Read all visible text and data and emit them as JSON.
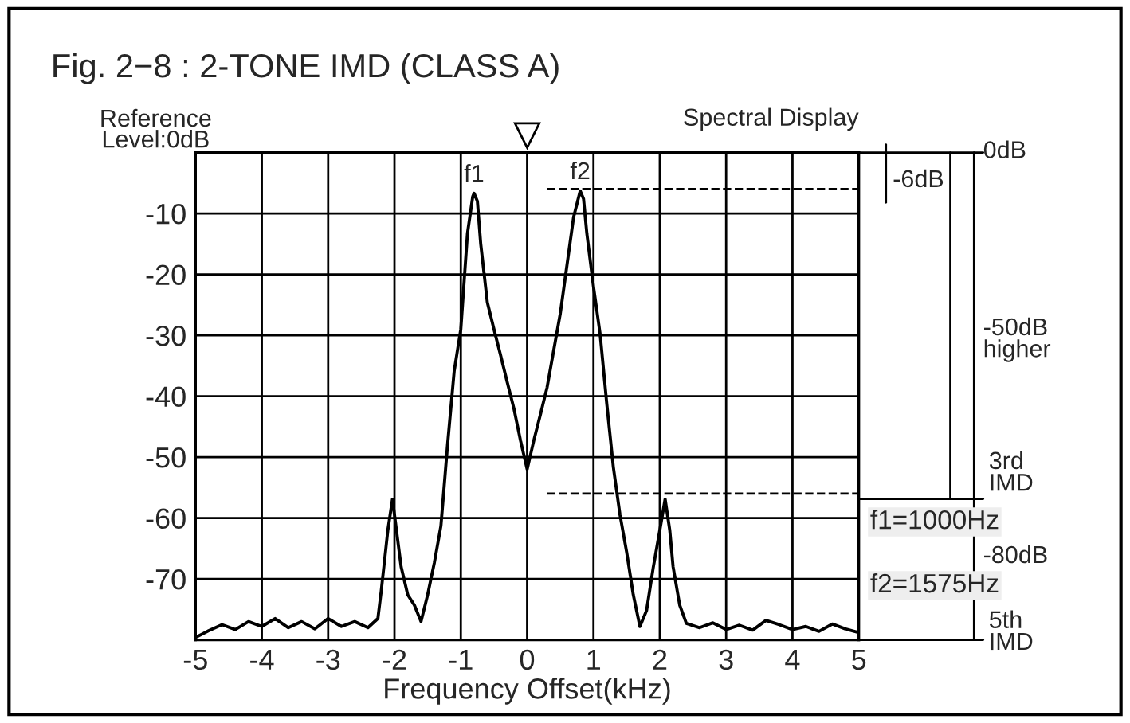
{
  "chart_data": {
    "type": "line",
    "title": "Fig. 2−8 : 2-TONE IMD (CLASS A)",
    "xlabel": "Frequency Offset(kHz)",
    "ylabel": "Reference\nLevel:0dB",
    "series": [
      {
        "color": "#000000",
        "x": [
          -5,
          -4.8,
          -4.6,
          -4.4,
          -4.2,
          -4.0,
          -3.8,
          -3.6,
          -3.4,
          -3.2,
          -3.0,
          -2.8,
          -2.6,
          -2.4,
          -2.25,
          -2.2,
          -2.1,
          -2.03,
          -1.97,
          -1.9,
          -1.8,
          -1.7,
          -1.6,
          -1.5,
          -1.4,
          -1.3,
          -1.2,
          -1.1,
          -1.0,
          -0.9,
          -0.82,
          -0.8,
          -0.75,
          -0.7,
          -0.6,
          -0.5,
          -0.4,
          -0.3,
          -0.2,
          -0.1,
          0,
          0.1,
          0.2,
          0.3,
          0.4,
          0.5,
          0.6,
          0.7,
          0.8,
          0.85,
          0.9,
          1.0,
          1.1,
          1.2,
          1.3,
          1.4,
          1.5,
          1.6,
          1.7,
          1.8,
          1.9,
          2.0,
          2.08,
          2.15,
          2.2,
          2.3,
          2.4,
          2.6,
          2.8,
          3.0,
          3.2,
          3.4,
          3.6,
          3.8,
          4.0,
          4.2,
          4.4,
          4.6,
          4.8,
          5
        ],
        "values": [
          -79.6,
          -78.5,
          -77.5,
          -78.3,
          -77,
          -77.8,
          -76.5,
          -78,
          -77,
          -78.2,
          -76.5,
          -77.8,
          -77,
          -78,
          -76.5,
          -72,
          -62,
          -56.9,
          -62,
          -68,
          -72.6,
          -74.3,
          -77,
          -72.6,
          -67.4,
          -61.3,
          -48,
          -35.9,
          -29,
          -13.3,
          -7.2,
          -6.7,
          -8,
          -15,
          -24.6,
          -29,
          -33.3,
          -37.7,
          -42,
          -47.3,
          -52,
          -47.3,
          -43,
          -38.6,
          -32.5,
          -26.4,
          -18.5,
          -10.6,
          -6.3,
          -7.6,
          -13.3,
          -22,
          -29.8,
          -41.2,
          -51.7,
          -59.5,
          -65.6,
          -72.6,
          -77.8,
          -75.2,
          -68.2,
          -62,
          -56.9,
          -62,
          -68,
          -74.3,
          -77.3,
          -78,
          -77.2,
          -78.3,
          -77.6,
          -78.4,
          -76.8,
          -77.5,
          -78.3,
          -77.8,
          -78.6,
          -77.4,
          -78.2,
          -78.8
        ]
      }
    ],
    "xlim": [
      -5,
      5
    ],
    "ylim": [
      -80,
      0
    ],
    "xticks": [
      -5,
      -4,
      -3,
      -2,
      -1,
      0,
      1,
      2,
      3,
      4,
      5
    ],
    "yticks": [
      {
        "value": 0,
        "label": null
      },
      -10,
      -20,
      -30,
      -40,
      -50,
      -60,
      -70,
      {
        "value": -80,
        "label": null
      }
    ],
    "grid": true,
    "legend": false,
    "marker": "none",
    "line_style": "solid",
    "ref_lines": [
      {
        "axis": "y",
        "value": -6,
        "line_style": "dashed"
      },
      {
        "axis": "y",
        "value": -56,
        "line_style": "dashed"
      }
    ],
    "annotations": [
      {
        "text": "f1",
        "x": -0.8,
        "y": -6.7
      },
      {
        "text": "f2",
        "x": 0.8,
        "y": -6.3
      },
      "Spectral Display",
      "0dB",
      "-6dB",
      "-50dB\nhigher",
      "3rd\nIMD",
      "f1=1000Hz",
      "-80dB",
      "f2=1575Hz",
      "5th\nIMD"
    ]
  }
}
